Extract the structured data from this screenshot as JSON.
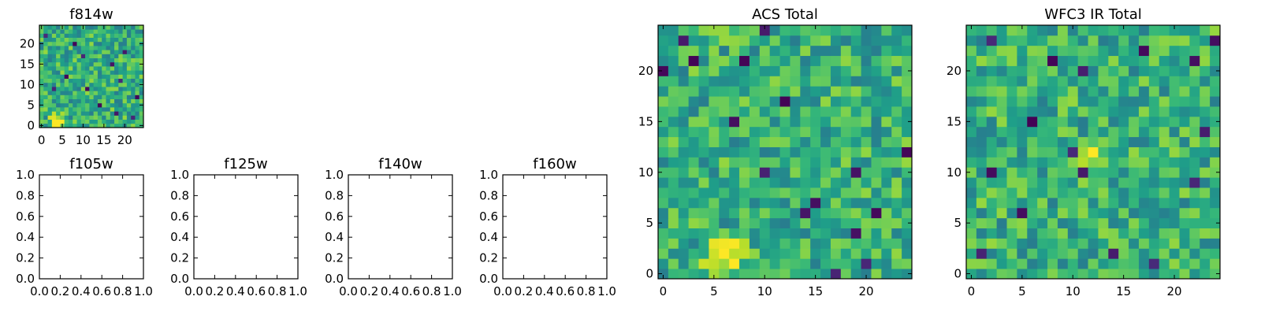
{
  "chart_data": [
    {
      "type": "heatmap",
      "name": "f814w",
      "title": "f814w",
      "colormap": "viridis",
      "grid_size": [
        25,
        25
      ],
      "xlim": [
        -0.5,
        24.5
      ],
      "ylim": [
        -0.5,
        24.5
      ],
      "xticks": [
        0,
        5,
        10,
        15,
        20
      ],
      "yticks": [
        0,
        5,
        10,
        15,
        20
      ],
      "pattern_seed": 814,
      "hotspot": {
        "x": 4,
        "y": 1,
        "strength": 0.45,
        "radius": 3
      },
      "outliers": [
        [
          1,
          22
        ],
        [
          20,
          18
        ],
        [
          11,
          9
        ],
        [
          18,
          3
        ],
        [
          6,
          12
        ],
        [
          23,
          7
        ],
        [
          8,
          20
        ],
        [
          14,
          5
        ],
        [
          3,
          9
        ],
        [
          19,
          11
        ],
        [
          17,
          15
        ],
        [
          22,
          2
        ],
        [
          10,
          17
        ]
      ]
    },
    {
      "type": "empty",
      "name": "f105w",
      "title": "f105w",
      "xlim": [
        0.0,
        1.0
      ],
      "ylim": [
        0.0,
        1.0
      ],
      "xticks": [
        "0.0",
        "0.2",
        "0.4",
        "0.6",
        "0.8",
        "1.0"
      ],
      "yticks": [
        "0.0",
        "0.2",
        "0.4",
        "0.6",
        "0.8",
        "1.0"
      ]
    },
    {
      "type": "empty",
      "name": "f125w",
      "title": "f125w",
      "xlim": [
        0.0,
        1.0
      ],
      "ylim": [
        0.0,
        1.0
      ],
      "xticks": [
        "0.0",
        "0.2",
        "0.4",
        "0.6",
        "0.8",
        "1.0"
      ],
      "yticks": [
        "0.0",
        "0.2",
        "0.4",
        "0.6",
        "0.8",
        "1.0"
      ]
    },
    {
      "type": "empty",
      "name": "f140w",
      "title": "f140w",
      "xlim": [
        0.0,
        1.0
      ],
      "ylim": [
        0.0,
        1.0
      ],
      "xticks": [
        "0.0",
        "0.2",
        "0.4",
        "0.6",
        "0.8",
        "1.0"
      ],
      "yticks": [
        "0.0",
        "0.2",
        "0.4",
        "0.6",
        "0.8",
        "1.0"
      ]
    },
    {
      "type": "empty",
      "name": "f160w",
      "title": "f160w",
      "xlim": [
        0.0,
        1.0
      ],
      "ylim": [
        0.0,
        1.0
      ],
      "xticks": [
        "0.0",
        "0.2",
        "0.4",
        "0.6",
        "0.8",
        "1.0"
      ],
      "yticks": [
        "0.0",
        "0.2",
        "0.4",
        "0.6",
        "0.8",
        "1.0"
      ]
    },
    {
      "type": "heatmap",
      "name": "acs-total",
      "title": "ACS Total",
      "colormap": "viridis",
      "grid_size": [
        25,
        25
      ],
      "xlim": [
        -0.5,
        24.5
      ],
      "ylim": [
        -0.5,
        24.5
      ],
      "xticks": [
        0,
        5,
        10,
        15,
        20
      ],
      "yticks": [
        0,
        5,
        10,
        15,
        20
      ],
      "pattern_seed": 2021,
      "hotspot": {
        "x": 6,
        "y": 2,
        "strength": 0.5,
        "radius": 3
      },
      "outliers": [
        [
          2,
          23
        ],
        [
          10,
          24
        ],
        [
          3,
          21
        ],
        [
          8,
          21
        ],
        [
          0,
          20
        ],
        [
          12,
          17
        ],
        [
          7,
          15
        ],
        [
          10,
          10
        ],
        [
          19,
          10
        ],
        [
          14,
          6
        ],
        [
          15,
          7
        ],
        [
          21,
          6
        ],
        [
          17,
          0
        ],
        [
          20,
          1
        ],
        [
          19,
          4
        ],
        [
          24,
          12
        ]
      ]
    },
    {
      "type": "heatmap",
      "name": "wfc3-ir-total",
      "title": "WFC3 IR Total",
      "colormap": "viridis",
      "grid_size": [
        25,
        25
      ],
      "xlim": [
        -0.5,
        24.5
      ],
      "ylim": [
        -0.5,
        24.5
      ],
      "xticks": [
        0,
        5,
        10,
        15,
        20
      ],
      "yticks": [
        0,
        5,
        10,
        15,
        20
      ],
      "pattern_seed": 3030,
      "hotspot": {
        "x": 12,
        "y": 12,
        "strength": 0.4,
        "radius": 2
      },
      "outliers": [
        [
          2,
          23
        ],
        [
          17,
          22
        ],
        [
          8,
          21
        ],
        [
          11,
          20
        ],
        [
          6,
          15
        ],
        [
          10,
          12
        ],
        [
          11,
          10
        ],
        [
          2,
          10
        ],
        [
          5,
          6
        ],
        [
          1,
          2
        ],
        [
          18,
          1
        ],
        [
          14,
          2
        ],
        [
          22,
          9
        ],
        [
          23,
          14
        ],
        [
          22,
          21
        ],
        [
          24,
          23
        ]
      ]
    }
  ]
}
